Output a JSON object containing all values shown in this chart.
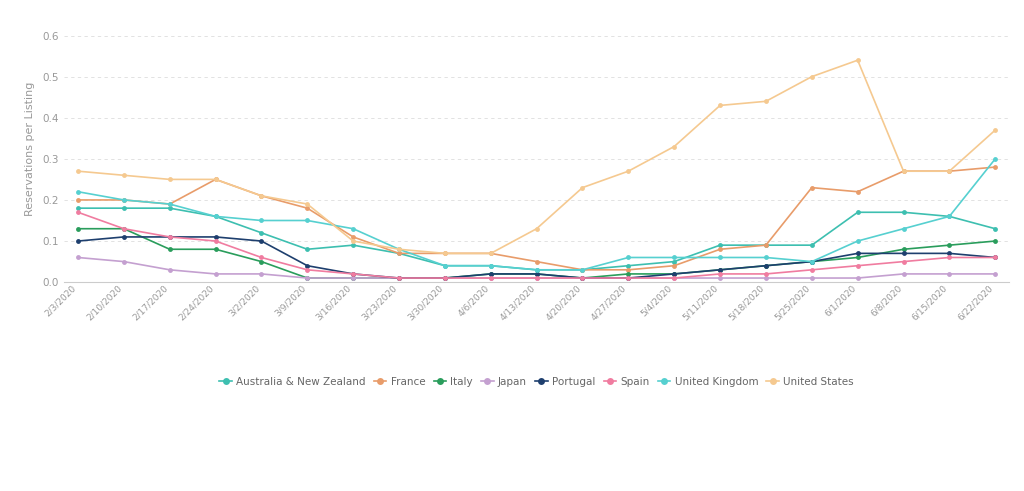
{
  "dates": [
    "2/3/2020",
    "2/10/2020",
    "2/17/2020",
    "2/24/2020",
    "3/2/2020",
    "3/9/2020",
    "3/16/2020",
    "3/23/2020",
    "3/30/2020",
    "4/6/2020",
    "4/13/2020",
    "4/20/2020",
    "4/27/2020",
    "5/4/2020",
    "5/11/2020",
    "5/18/2020",
    "5/25/2020",
    "6/1/2020",
    "6/8/2020",
    "6/15/2020",
    "6/22/2020"
  ],
  "series": {
    "Australia & New Zealand": {
      "color": "#3dbfb0",
      "values": [
        0.18,
        0.18,
        0.18,
        0.16,
        0.12,
        0.08,
        0.09,
        0.07,
        0.04,
        0.04,
        0.03,
        0.03,
        0.04,
        0.05,
        0.09,
        0.09,
        0.09,
        0.17,
        0.17,
        0.16,
        0.13
      ]
    },
    "France": {
      "color": "#e89c6a",
      "values": [
        0.2,
        0.2,
        0.19,
        0.25,
        0.21,
        0.18,
        0.11,
        0.07,
        0.07,
        0.07,
        0.05,
        0.03,
        0.03,
        0.04,
        0.08,
        0.09,
        0.23,
        0.22,
        0.27,
        0.27,
        0.28
      ]
    },
    "Italy": {
      "color": "#2a9d5c",
      "values": [
        0.13,
        0.13,
        0.08,
        0.08,
        0.05,
        0.01,
        0.01,
        0.01,
        0.01,
        0.02,
        0.02,
        0.01,
        0.02,
        0.02,
        0.03,
        0.04,
        0.05,
        0.06,
        0.08,
        0.09,
        0.1
      ]
    },
    "Japan": {
      "color": "#c4a0d0",
      "values": [
        0.06,
        0.05,
        0.03,
        0.02,
        0.02,
        0.01,
        0.01,
        0.01,
        0.01,
        0.01,
        0.01,
        0.01,
        0.01,
        0.01,
        0.01,
        0.01,
        0.01,
        0.01,
        0.02,
        0.02,
        0.02
      ]
    },
    "Portugal": {
      "color": "#1e3f6e",
      "values": [
        0.1,
        0.11,
        0.11,
        0.11,
        0.1,
        0.04,
        0.02,
        0.01,
        0.01,
        0.02,
        0.02,
        0.01,
        0.01,
        0.02,
        0.03,
        0.04,
        0.05,
        0.07,
        0.07,
        0.07,
        0.06
      ]
    },
    "Spain": {
      "color": "#f07ca0",
      "values": [
        0.17,
        0.13,
        0.11,
        0.1,
        0.06,
        0.03,
        0.02,
        0.01,
        0.01,
        0.01,
        0.01,
        0.01,
        0.01,
        0.01,
        0.02,
        0.02,
        0.03,
        0.04,
        0.05,
        0.06,
        0.06
      ]
    },
    "United Kingdom": {
      "color": "#56d0d0",
      "values": [
        0.22,
        0.2,
        0.19,
        0.16,
        0.15,
        0.15,
        0.13,
        0.08,
        0.04,
        0.04,
        0.03,
        0.03,
        0.06,
        0.06,
        0.06,
        0.06,
        0.05,
        0.1,
        0.13,
        0.16,
        0.3
      ]
    },
    "United States": {
      "color": "#f5c990",
      "values": [
        0.27,
        0.26,
        0.25,
        0.25,
        0.21,
        0.19,
        0.1,
        0.08,
        0.07,
        0.07,
        0.13,
        0.23,
        0.27,
        0.33,
        0.43,
        0.44,
        0.5,
        0.54,
        0.27,
        0.27,
        0.37
      ]
    }
  },
  "ylabel": "Reservations per Listing",
  "ylim": [
    0.0,
    0.65
  ],
  "yticks": [
    0.0,
    0.1,
    0.2,
    0.3,
    0.4,
    0.5,
    0.6
  ],
  "background_color": "#ffffff",
  "grid_color": "#dddddd",
  "axis_label_color": "#999999",
  "legend_color": "#666666",
  "figsize": [
    10.24,
    4.91
  ],
  "dpi": 100
}
